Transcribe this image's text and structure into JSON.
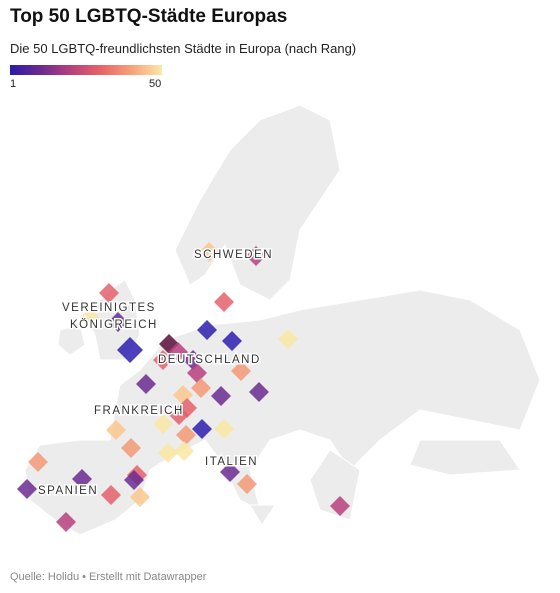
{
  "header": {
    "title": "Top 50 LGBTQ-Städte Europas",
    "subtitle": "Die 50 LGBTQ-freundlichsten Städte in Europa (nach Rang)"
  },
  "legend": {
    "min": "1",
    "max": "50"
  },
  "labels": [
    "SCHWEDEN",
    "VEREINIGTES",
    "KÖNIGREICH",
    "DEUTSCHLAND",
    "FRANKREICH",
    "ITALIEN",
    "SPANIEN"
  ],
  "footer": {
    "source": "Quelle: Holidu • Erstellt mit Datawrapper"
  }
}
